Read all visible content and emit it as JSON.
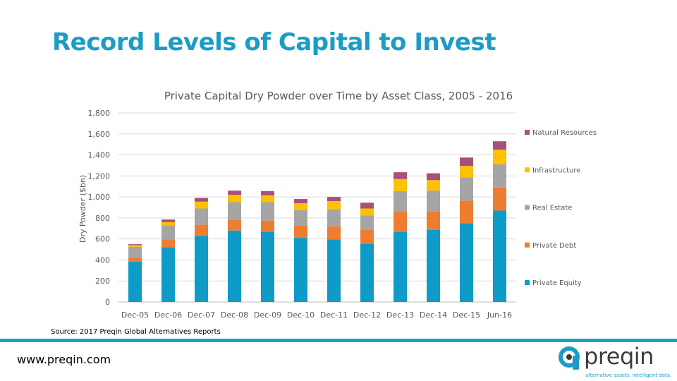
{
  "slide": {
    "title": "Record Levels of Capital to Invest",
    "source": "Source: 2017 Preqin Global Alternatives Reports",
    "website": "www.preqin.com",
    "logo_text": "preqin",
    "logo_tagline": "alternative assets. intelligent data.",
    "title_color": "#1b9cc5",
    "footer_bar_color": "#1b9cc5"
  },
  "chart_data": {
    "type": "bar",
    "stacked": true,
    "title": "Private Capital Dry Powder over Time by Asset Class, 2005 - 2016",
    "xlabel": "",
    "ylabel": "Dry Powder ($bn)",
    "ylim": [
      0,
      1800
    ],
    "yticks": [
      0,
      200,
      400,
      600,
      800,
      "1,000",
      "1,200",
      "1,400",
      "1,600",
      "1,800"
    ],
    "grid": true,
    "legend_position": "right",
    "categories": [
      "Dec-05",
      "Dec-06",
      "Dec-07",
      "Dec-08",
      "Dec-09",
      "Dec-10",
      "Dec-11",
      "Dec-12",
      "Dec-13",
      "Dec-14",
      "Dec-15",
      "Jun-16"
    ],
    "series": [
      {
        "name": "Private Equity",
        "color": "#0e9bc7",
        "values": [
          385,
          520,
          630,
          680,
          670,
          610,
          595,
          555,
          670,
          685,
          750,
          870
        ]
      },
      {
        "name": "Private Debt",
        "color": "#ed7d31",
        "values": [
          40,
          75,
          105,
          105,
          105,
          115,
          125,
          130,
          190,
          175,
          215,
          220
        ]
      },
      {
        "name": "Real Estate",
        "color": "#a5a5a5",
        "values": [
          100,
          135,
          155,
          165,
          175,
          150,
          160,
          140,
          195,
          200,
          220,
          220
        ]
      },
      {
        "name": "Infrastructure",
        "color": "#ffc000",
        "values": [
          15,
          30,
          65,
          70,
          65,
          65,
          80,
          65,
          115,
          100,
          110,
          140
        ]
      },
      {
        "name": "Natural Resources",
        "color": "#a5527b",
        "values": [
          10,
          25,
          35,
          40,
          40,
          40,
          40,
          55,
          65,
          65,
          80,
          80
        ]
      }
    ]
  }
}
